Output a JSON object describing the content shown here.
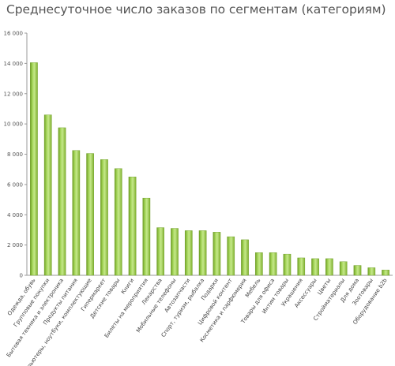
{
  "chart_data": {
    "type": "bar",
    "title": "Среднесуточное число заказов по сегментам (категориям)",
    "xlabel": "",
    "ylabel": "",
    "ylim": [
      0,
      16000
    ],
    "yticks": [
      "0",
      "2 000",
      "4 000",
      "6 000",
      "8 000",
      "10 000",
      "12 000",
      "14 000",
      "16 000"
    ],
    "grid": false,
    "legend": "none",
    "bar_color": "#8dc63f",
    "categories": [
      "Одежда, обувь",
      "Групповые покупки",
      "Бытовая техника и электроника",
      "Продукты питания",
      "Компьютеры, ноутбуки, комплектующие",
      "Гипермаркет",
      "Детские товары",
      "Книги",
      "Билеты на мероприятия",
      "Лекарства",
      "Мобильные телефоны",
      "Автозапчасти",
      "Спорт, туризм, рыбалка",
      "Подарки",
      "Цифровой контент",
      "Косметика и парфюмерия",
      "Мебель",
      "Товары для офиса",
      "Интим товары",
      "Украшения",
      "Аксессуары",
      "Цветы",
      "Стройматериалы",
      "Для дома",
      "Зоотовары",
      "Оборудование b2b"
    ],
    "values": [
      14050,
      10600,
      9750,
      8250,
      8050,
      7650,
      7050,
      6500,
      5100,
      3150,
      3100,
      2950,
      2950,
      2850,
      2550,
      2350,
      1500,
      1500,
      1400,
      1150,
      1100,
      1100,
      900,
      650,
      500,
      350
    ]
  }
}
